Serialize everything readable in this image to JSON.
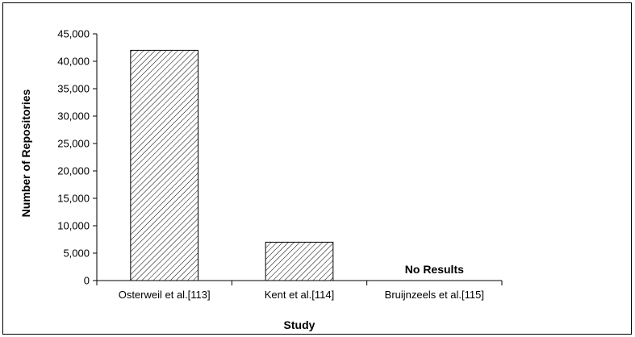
{
  "chart_data": {
    "type": "bar",
    "categories": [
      "Osterweil et al.[113]",
      "Kent et al.[114]",
      "Bruijnzeels et al.[115]"
    ],
    "values": [
      42000,
      7000,
      null
    ],
    "annotations": [
      "",
      "",
      "No Results"
    ],
    "title": "",
    "xlabel": "Study",
    "ylabel": "Number of Repositories",
    "ylim": [
      0,
      45000
    ],
    "yticks": [
      0,
      5000,
      10000,
      15000,
      20000,
      25000,
      30000,
      35000,
      40000,
      45000
    ],
    "ytick_labels": [
      "0",
      "5,000",
      "10,000",
      "15,000",
      "20,000",
      "25,000",
      "30,000",
      "35,000",
      "40,000",
      "45,000"
    ],
    "grid": false,
    "bar_fill": "diagonal hatch",
    "bar_stroke": "#000000"
  }
}
